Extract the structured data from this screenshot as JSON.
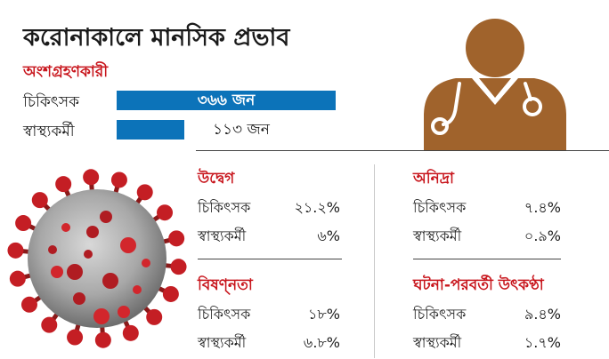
{
  "title": "করোনাকালে মানসিক প্রভাব",
  "participants": {
    "heading": "অংশগ্রহণকারী",
    "rows": [
      {
        "label": "চিকিৎসক",
        "value": 366,
        "value_text": "৩৬৬ জন"
      },
      {
        "label": "স্বাস্থ্যকর্মী",
        "value": 113,
        "value_text": "১১৩ জন"
      }
    ]
  },
  "stats": [
    {
      "title": "উদ্বেগ",
      "rows": [
        {
          "label": "চিকিৎসক",
          "value": "২১.২%"
        },
        {
          "label": "স্বাস্থ্যকর্মী",
          "value": "৬%"
        }
      ]
    },
    {
      "title": "অনিদ্রা",
      "rows": [
        {
          "label": "চিকিৎসক",
          "value": "৭.৪%"
        },
        {
          "label": "স্বাস্থ্যকর্মী",
          "value": "০.৯%"
        }
      ]
    },
    {
      "title": "বিষণ্নতা",
      "rows": [
        {
          "label": "চিকিৎসক",
          "value": "১৮%"
        },
        {
          "label": "স্বাস্থ্যকর্মী",
          "value": "৬.৮%"
        }
      ]
    },
    {
      "title": "ঘটনা-পরবর্তী উৎকণ্ঠা",
      "rows": [
        {
          "label": "চিকিৎসক",
          "value": "৯.৪%"
        },
        {
          "label": "স্বাস্থ্যকর্মী",
          "value": "১.৭%"
        }
      ]
    }
  ],
  "colors": {
    "bar": "#0c73b9",
    "accent": "#c8161d",
    "doctor": "#a0632c"
  },
  "icons": [
    "doctor-icon",
    "stethoscope-icon",
    "coronavirus-icon"
  ],
  "chart_data": [
    {
      "type": "bar",
      "orientation": "horizontal",
      "title": "অংশগ্রহণকারী",
      "categories": [
        "চিকিৎসক",
        "স্বাস্থ্যকর্মী"
      ],
      "values": [
        366,
        113
      ]
    },
    {
      "type": "table",
      "title": "উদ্বেগ",
      "rows": [
        [
          "চিকিৎসক",
          21.2
        ],
        [
          "স্বাস্থ্যকর্মী",
          6
        ]
      ]
    },
    {
      "type": "table",
      "title": "অনিদ্রা",
      "rows": [
        [
          "চিকিৎসক",
          7.4
        ],
        [
          "স্বাস্থ্যকর্মী",
          0.9
        ]
      ]
    },
    {
      "type": "table",
      "title": "বিষণ্নতা",
      "rows": [
        [
          "চিকিৎসক",
          18
        ],
        [
          "স্বাস্থ্যকর্মী",
          6.8
        ]
      ]
    },
    {
      "type": "table",
      "title": "ঘটনা-পরবর্তী উৎকণ্ঠা",
      "rows": [
        [
          "চিকিৎসক",
          9.4
        ],
        [
          "স্বাস্থ্যকর্মী",
          1.7
        ]
      ]
    }
  ]
}
